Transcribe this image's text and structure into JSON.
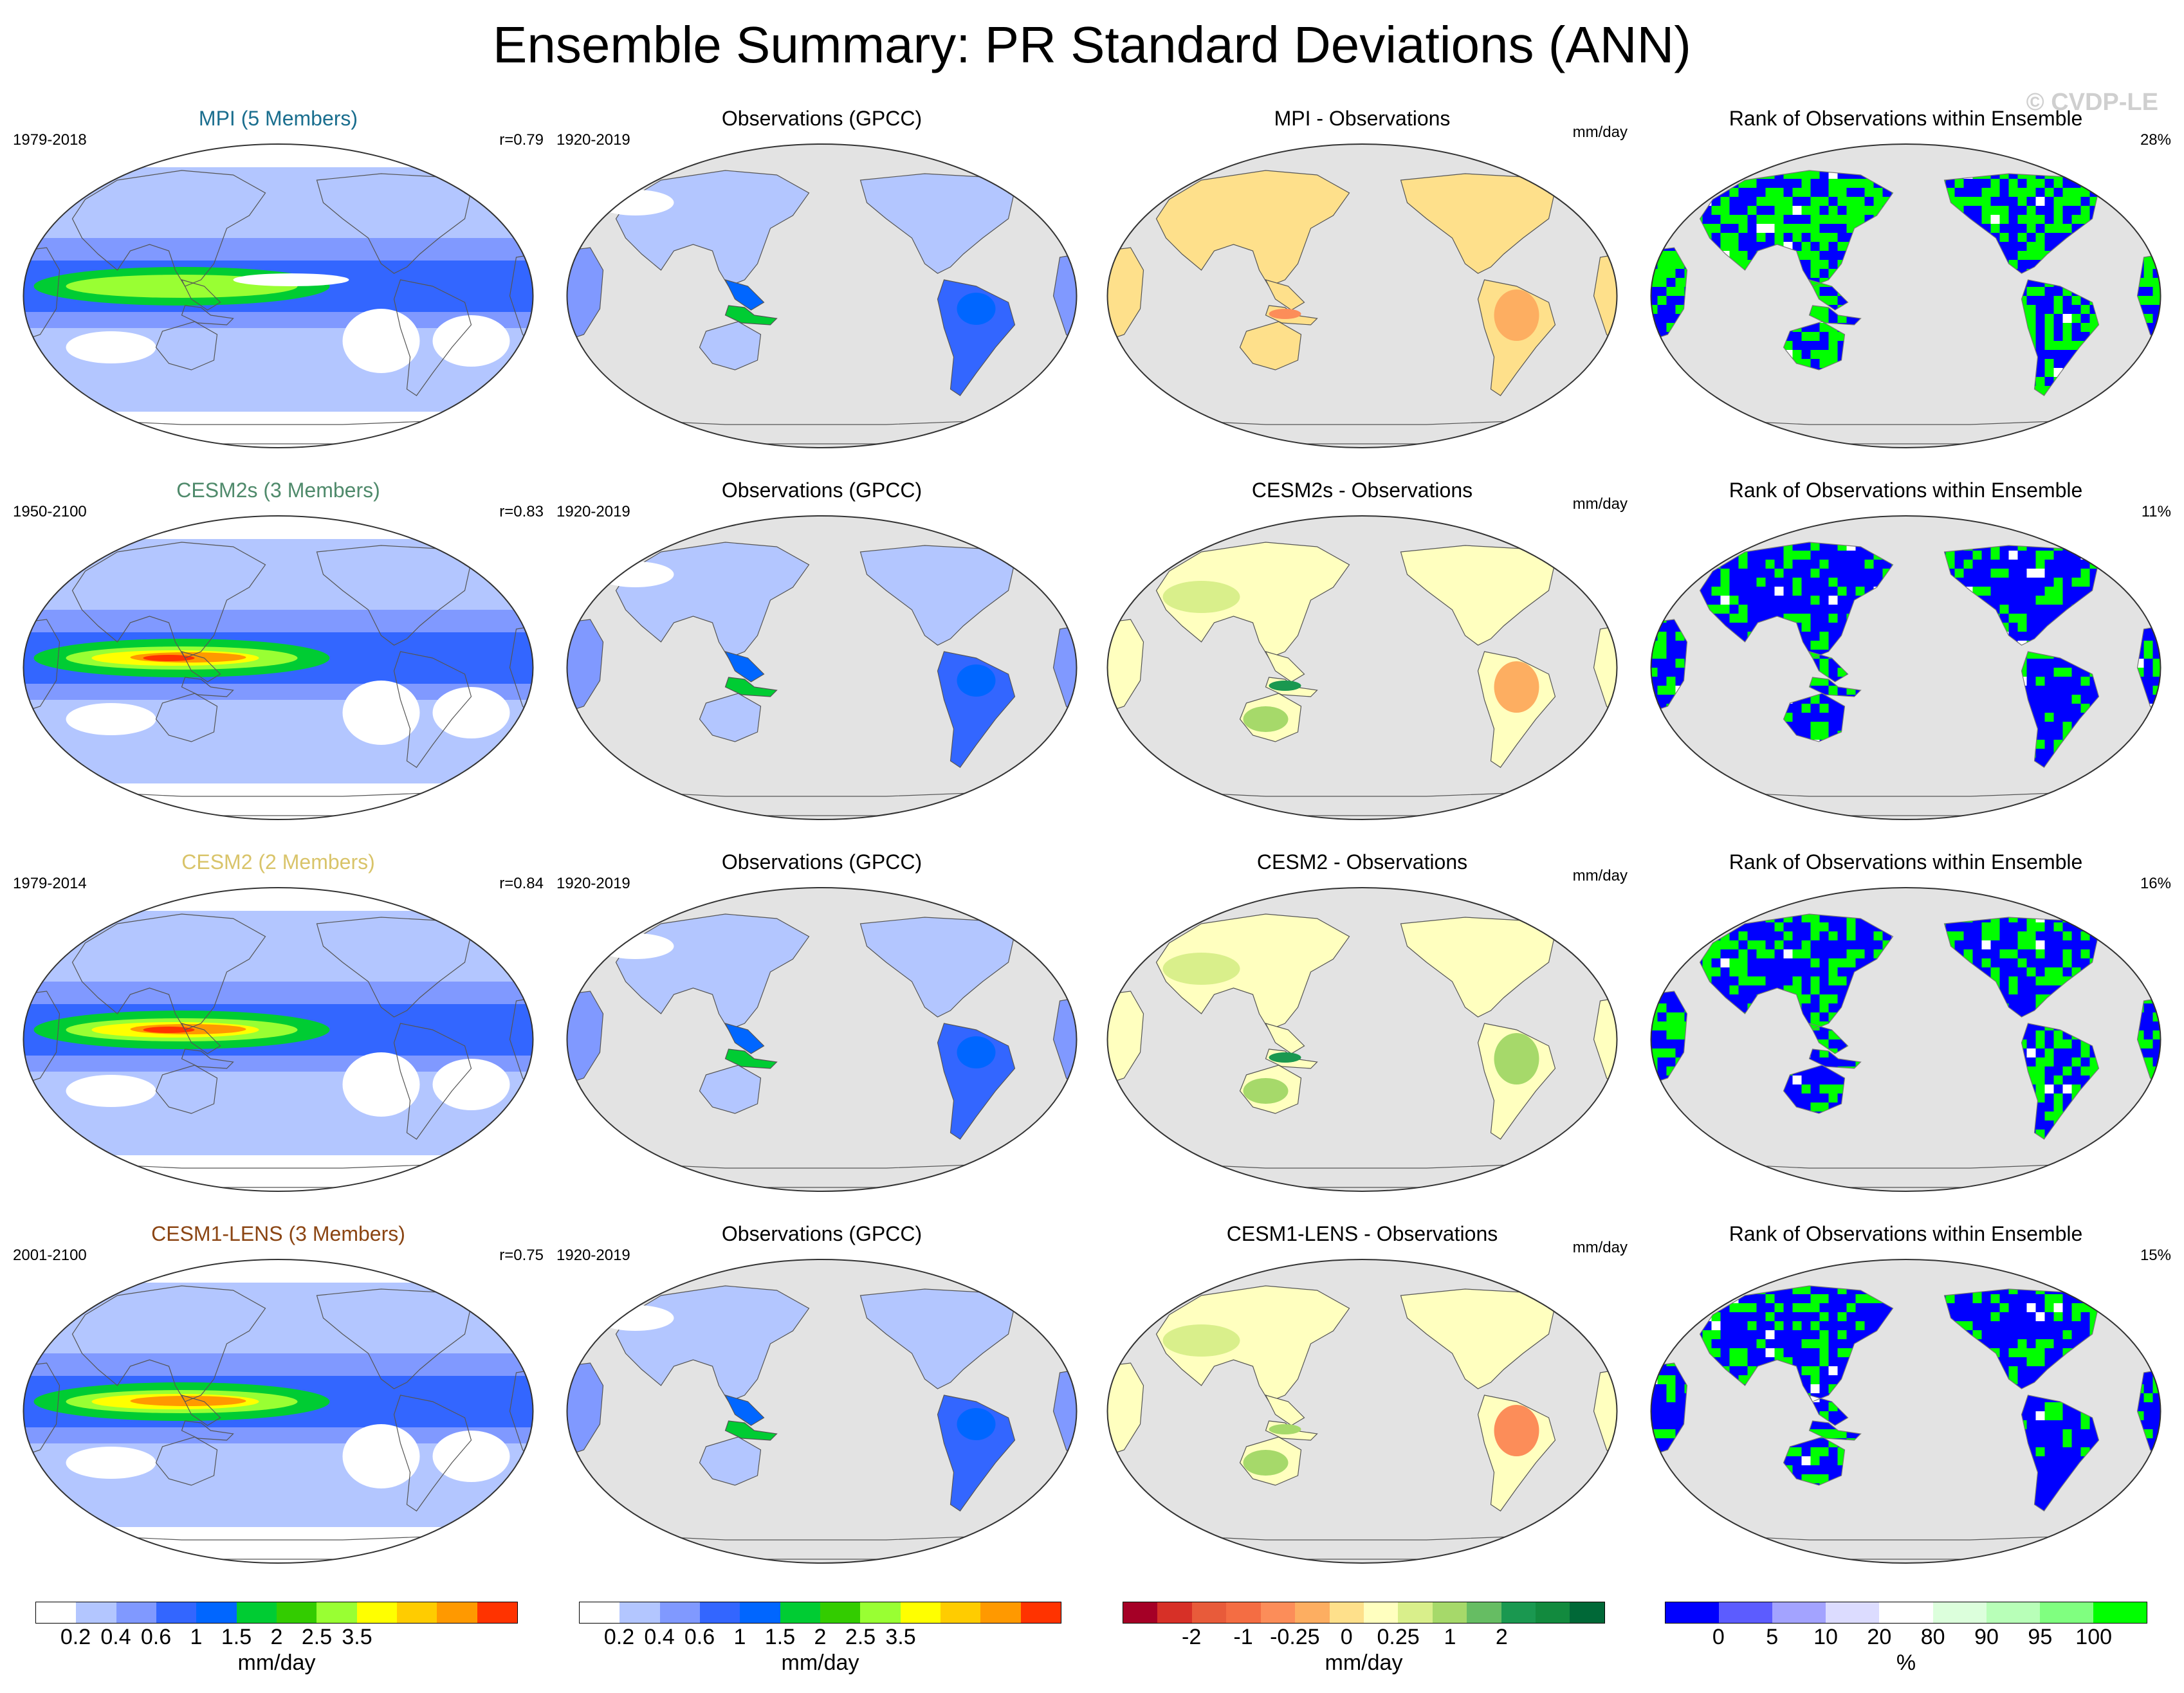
{
  "title": "Ensemble Summary: PR Standard Deviations (ANN)",
  "watermark": "© CVDP-LE",
  "rows": [
    {
      "model": "MPI (5 Members)",
      "model_color": "#1a6e8e",
      "years": "1979-2018",
      "r": "r=0.79",
      "obs_title": "Observations (GPCC)",
      "obs_years": "1920-2019",
      "diff_title": "MPI - Observations",
      "diff_units": "mm/day",
      "rank_title": "Rank of Observations within Ensemble",
      "rank_pct": "28%"
    },
    {
      "model": "CESM2s (3 Members)",
      "model_color": "#4f8a6b",
      "years": "1950-2100",
      "r": "r=0.83",
      "obs_title": "Observations (GPCC)",
      "obs_years": "1920-2019",
      "diff_title": "CESM2s - Observations",
      "diff_units": "mm/day",
      "rank_title": "Rank of Observations within Ensemble",
      "rank_pct": "11%"
    },
    {
      "model": "CESM2 (2 Members)",
      "model_color": "#d9c46a",
      "years": "1979-2014",
      "r": "r=0.84",
      "obs_title": "Observations (GPCC)",
      "obs_years": "1920-2019",
      "diff_title": "CESM2 - Observations",
      "diff_units": "mm/day",
      "rank_title": "Rank of Observations within Ensemble",
      "rank_pct": "16%"
    },
    {
      "model": "CESM1-LENS (3 Members)",
      "model_color": "#8b4513",
      "years": "2001-2100",
      "r": "r=0.75",
      "obs_title": "Observations (GPCC)",
      "obs_years": "1920-2019",
      "diff_title": "CESM1-LENS - Observations",
      "diff_units": "mm/day",
      "rank_title": "Rank of Observations within Ensemble",
      "rank_pct": "15%"
    }
  ],
  "colorbars": [
    {
      "name": "model-std-colorbar",
      "colors": [
        "#ffffff",
        "#b3c6ff",
        "#8099ff",
        "#3366ff",
        "#0066ff",
        "#00cc33",
        "#33cc00",
        "#99ff33",
        "#ffff00",
        "#ffcc00",
        "#ff9900",
        "#ff3300"
      ],
      "ticks": [
        "0.2",
        "0.4",
        "0.6",
        "1",
        "1.5",
        "2",
        "2.5",
        "3.5"
      ],
      "units": "mm/day"
    },
    {
      "name": "obs-std-colorbar",
      "colors": [
        "#ffffff",
        "#b3c6ff",
        "#8099ff",
        "#3366ff",
        "#0066ff",
        "#00cc33",
        "#33cc00",
        "#99ff33",
        "#ffff00",
        "#ffcc00",
        "#ff9900",
        "#ff3300"
      ],
      "ticks": [
        "0.2",
        "0.4",
        "0.6",
        "1",
        "1.5",
        "2",
        "2.5",
        "3.5"
      ],
      "units": "mm/day"
    },
    {
      "name": "diff-colorbar",
      "colors": [
        "#a50026",
        "#d73027",
        "#e85b3a",
        "#f46d43",
        "#fc8d59",
        "#fdae61",
        "#fee08b",
        "#ffffbf",
        "#d9ef8b",
        "#a6d96a",
        "#66bd63",
        "#1a9850",
        "#128a3e",
        "#006837"
      ],
      "ticks": [
        "-2",
        "-1",
        "-0.25",
        "0",
        "0.25",
        "1",
        "2"
      ],
      "units": "mm/day"
    },
    {
      "name": "rank-colorbar",
      "colors": [
        "#0000ff",
        "#5c5cff",
        "#a3a3ff",
        "#dcdcff",
        "#ffffff",
        "#dcffdc",
        "#b8ffb8",
        "#80ff80",
        "#00ff00"
      ],
      "ticks": [
        "0",
        "5",
        "10",
        "20",
        "80",
        "90",
        "95",
        "100"
      ],
      "units": "%"
    }
  ]
}
